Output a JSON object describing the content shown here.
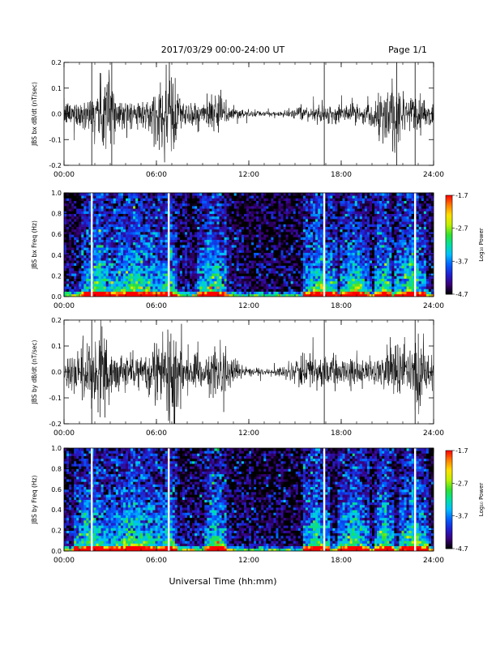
{
  "header": {
    "title": "2017/03/29  00:00-24:00 UT",
    "page": "Page 1/1"
  },
  "footer": {
    "xlabel": "Universal Time (hh:mm)"
  },
  "colorbar": {
    "ticks": [
      "-1.7",
      "-2.7",
      "-3.7",
      "-4.7"
    ],
    "label": "Log₁₀ Power",
    "range": [
      -4.7,
      -1.7
    ],
    "colormap": [
      "#000000",
      "#3a007a",
      "#2020d0",
      "#0060ff",
      "#00c0ff",
      "#00e0a0",
      "#30e030",
      "#c0f000",
      "#ffe000",
      "#ff8000",
      "#ff0000"
    ]
  },
  "chart_data": [
    {
      "type": "line",
      "name": "panel-bx-waveform",
      "ylabel": "JBS bx dB/dt (nT/sec)",
      "xlim": [
        0,
        24
      ],
      "ylim": [
        -0.2,
        0.2
      ],
      "xticks": [
        "00:00",
        "06:00",
        "12:00",
        "18:00",
        "24:00"
      ],
      "yticks": [
        "0.2",
        "0.1",
        "0.0",
        "-0.1",
        "-0.2"
      ],
      "envelope": {
        "hours": [
          0,
          1,
          1.8,
          2.5,
          3.0,
          3.5,
          4.5,
          5.5,
          6.0,
          6.3,
          6.8,
          7.1,
          7.6,
          8.5,
          9.5,
          10.2,
          10.8,
          12,
          13,
          14,
          15,
          16,
          17,
          18,
          19,
          20,
          20.7,
          21.1,
          21.6,
          22.2,
          22.8,
          23.5,
          24
        ],
        "amplitude_nT_per_s": [
          0.05,
          0.06,
          0.08,
          0.16,
          0.24,
          0.07,
          0.05,
          0.06,
          0.12,
          0.1,
          0.24,
          0.22,
          0.06,
          0.05,
          0.06,
          0.08,
          0.04,
          0.015,
          0.01,
          0.012,
          0.02,
          0.03,
          0.04,
          0.035,
          0.04,
          0.05,
          0.09,
          0.2,
          0.16,
          0.06,
          0.1,
          0.07,
          0.04
        ]
      },
      "spikes_hours": [
        1.8,
        3.1,
        16.9,
        21.6,
        22.8
      ]
    },
    {
      "type": "heatmap",
      "name": "panel-bx-spectrogram",
      "ylabel": "JBS bx Freq (Hz)",
      "xlim": [
        0,
        24
      ],
      "ylim": [
        0,
        1.0
      ],
      "xticks": [
        "00:00",
        "06:00",
        "12:00",
        "18:00",
        "24:00"
      ],
      "yticks": [
        "1.0",
        "0.8",
        "0.6",
        "0.4",
        "0.2",
        "0.0"
      ],
      "zlim": [
        -4.7,
        -1.7
      ],
      "data_gaps_hours": [
        1.8,
        6.8,
        16.9,
        22.8
      ],
      "activity_bands_hours": [
        1.5,
        2.8,
        3.1,
        6.0,
        6.5,
        7.0,
        9.0,
        10.3,
        15.8,
        17.5,
        18.2,
        19.5,
        20.5,
        21.0,
        21.8,
        23.2
      ]
    },
    {
      "type": "line",
      "name": "panel-by-waveform",
      "ylabel": "JBS by dB/dt (nT/sec)",
      "xlim": [
        0,
        24
      ],
      "ylim": [
        -0.2,
        0.2
      ],
      "xticks": [
        "00:00",
        "06:00",
        "12:00",
        "18:00",
        "24:00"
      ],
      "yticks": [
        "0.2",
        "0.1",
        "0.0",
        "-0.1",
        "-0.2"
      ],
      "envelope": {
        "hours": [
          0,
          1,
          1.8,
          2.3,
          2.8,
          3.2,
          3.8,
          4.5,
          5.5,
          6.0,
          6.4,
          6.8,
          7.2,
          7.8,
          8.5,
          9.5,
          10.3,
          11,
          12,
          13,
          14,
          15,
          15.8,
          16.5,
          17.5,
          18.5,
          19.5,
          20.5,
          21,
          21.7,
          22.3,
          22.8,
          23.5,
          24
        ],
        "amplitude_nT_per_s": [
          0.06,
          0.1,
          0.14,
          0.2,
          0.16,
          0.1,
          0.07,
          0.06,
          0.07,
          0.16,
          0.12,
          0.26,
          0.24,
          0.08,
          0.06,
          0.07,
          0.12,
          0.05,
          0.02,
          0.015,
          0.02,
          0.04,
          0.09,
          0.07,
          0.07,
          0.05,
          0.06,
          0.07,
          0.12,
          0.16,
          0.08,
          0.2,
          0.1,
          0.06
        ]
      },
      "spikes_hours": [
        1.8,
        16.9,
        22.8
      ]
    },
    {
      "type": "heatmap",
      "name": "panel-by-spectrogram",
      "ylabel": "JBS by Freq (Hz)",
      "xlim": [
        0,
        24
      ],
      "ylim": [
        0,
        1.0
      ],
      "xticks": [
        "00:00",
        "06:00",
        "12:00",
        "18:00",
        "24:00"
      ],
      "yticks": [
        "1.0",
        "0.8",
        "0.6",
        "0.4",
        "0.2",
        "0.0"
      ],
      "zlim": [
        -4.7,
        -1.7
      ],
      "data_gaps_hours": [
        1.8,
        6.8,
        16.9,
        22.8
      ],
      "activity_bands_hours": [
        1.0,
        2.5,
        3.0,
        6.0,
        6.5,
        7.0,
        9.5,
        10.3,
        15.8,
        17.0,
        18.0,
        19.5,
        20.5,
        21.2,
        22.0,
        23.3
      ]
    }
  ]
}
